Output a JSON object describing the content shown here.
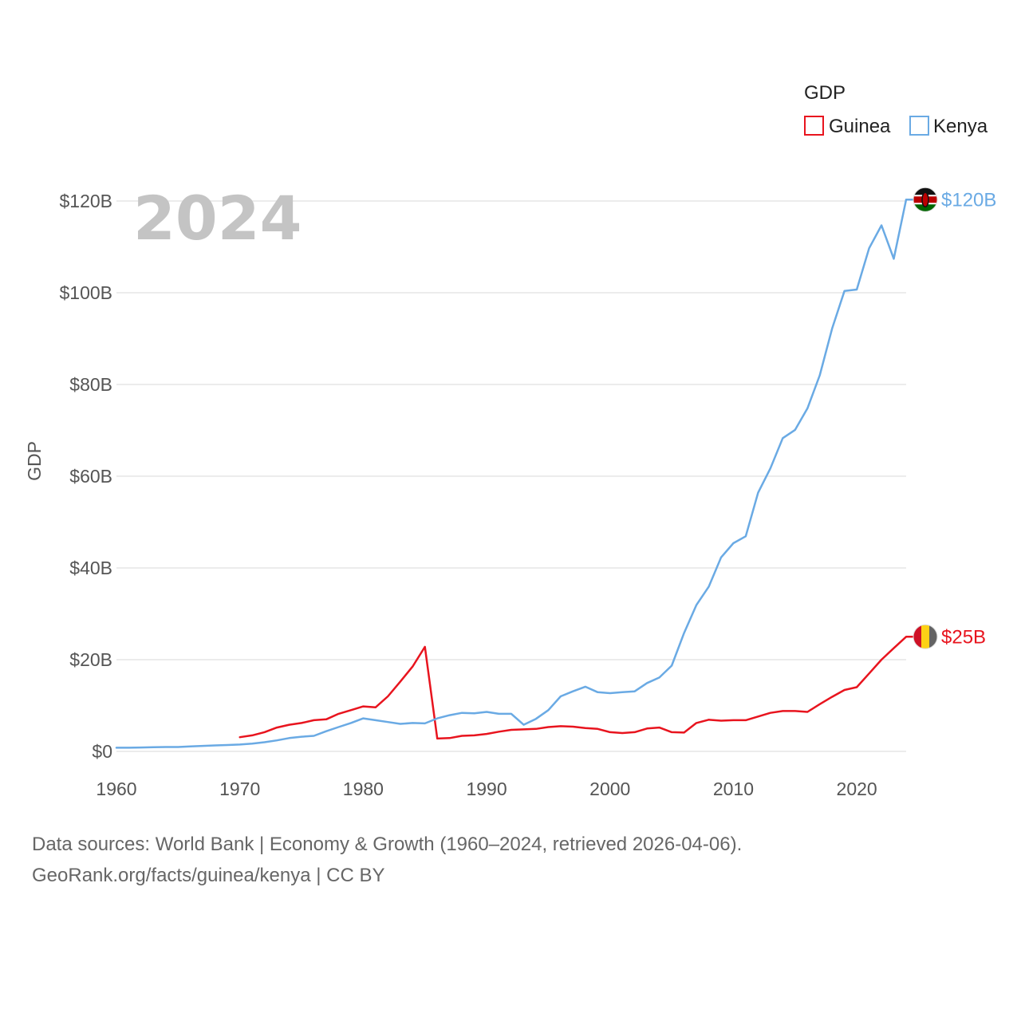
{
  "chart_data": {
    "type": "line",
    "title": "GDP",
    "year_label": "2024",
    "ylabel": "GDP",
    "xlabel": "",
    "xlim": [
      1960,
      2024
    ],
    "ylim": [
      0,
      120
    ],
    "y_unit": "billion USD",
    "x_ticks": [
      1960,
      1970,
      1980,
      1990,
      2000,
      2010,
      2020
    ],
    "y_ticks": [
      0,
      20,
      40,
      60,
      80,
      100,
      120
    ],
    "y_tick_labels": [
      "$0",
      "$20B",
      "$40B",
      "$60B",
      "$80B",
      "$100B",
      "$120B"
    ],
    "grid": true,
    "legend": {
      "title": "GDP",
      "position": "top-right",
      "entries": [
        "Guinea",
        "Kenya"
      ]
    },
    "series": [
      {
        "name": "Guinea",
        "color": "#e8141e",
        "end_label": "$25B",
        "flag_colors": [
          "#ce1126",
          "#fcd116",
          "#636363"
        ],
        "x": [
          1970,
          1971,
          1972,
          1973,
          1974,
          1975,
          1976,
          1977,
          1978,
          1979,
          1980,
          1981,
          1982,
          1983,
          1984,
          1985,
          1986,
          1987,
          1988,
          1989,
          1990,
          1991,
          1992,
          1993,
          1994,
          1995,
          1996,
          1997,
          1998,
          1999,
          2000,
          2001,
          2002,
          2003,
          2004,
          2005,
          2006,
          2007,
          2008,
          2009,
          2010,
          2011,
          2012,
          2013,
          2014,
          2015,
          2016,
          2017,
          2018,
          2019,
          2020,
          2021,
          2022,
          2023,
          2024
        ],
        "values": [
          3.1,
          3.5,
          4.2,
          5.2,
          5.8,
          6.2,
          6.8,
          7.0,
          8.2,
          9.0,
          9.8,
          9.6,
          12.0,
          15.2,
          18.5,
          22.8,
          2.8,
          2.9,
          3.4,
          3.5,
          3.8,
          4.3,
          4.7,
          4.8,
          4.9,
          5.3,
          5.5,
          5.4,
          5.1,
          4.9,
          4.2,
          4.0,
          4.2,
          5.0,
          5.2,
          4.2,
          4.1,
          6.2,
          6.9,
          6.7,
          6.8,
          6.8,
          7.6,
          8.4,
          8.8,
          8.8,
          8.6,
          10.3,
          11.9,
          13.4,
          14.0,
          17.0,
          20.0,
          22.5,
          25.0
        ]
      },
      {
        "name": "Kenya",
        "color": "#6aaae4",
        "end_label": "$120B",
        "flag_colors": [
          "#111111",
          "#bb0000",
          "#006600"
        ],
        "x": [
          1960,
          1961,
          1962,
          1963,
          1964,
          1965,
          1966,
          1967,
          1968,
          1969,
          1970,
          1971,
          1972,
          1973,
          1974,
          1975,
          1976,
          1977,
          1978,
          1979,
          1980,
          1981,
          1982,
          1983,
          1984,
          1985,
          1986,
          1987,
          1988,
          1989,
          1990,
          1991,
          1992,
          1993,
          1994,
          1995,
          1996,
          1997,
          1998,
          1999,
          2000,
          2001,
          2002,
          2003,
          2004,
          2005,
          2006,
          2007,
          2008,
          2009,
          2010,
          2011,
          2012,
          2013,
          2014,
          2015,
          2016,
          2017,
          2018,
          2019,
          2020,
          2021,
          2022,
          2023,
          2024
        ],
        "values": [
          0.8,
          0.8,
          0.85,
          0.9,
          0.95,
          0.95,
          1.1,
          1.2,
          1.3,
          1.4,
          1.5,
          1.7,
          2.0,
          2.4,
          2.9,
          3.2,
          3.4,
          4.4,
          5.3,
          6.2,
          7.2,
          6.8,
          6.4,
          6.0,
          6.2,
          6.1,
          7.2,
          7.9,
          8.4,
          8.3,
          8.6,
          8.2,
          8.2,
          5.8,
          7.1,
          9.0,
          12.0,
          13.1,
          14.1,
          12.9,
          12.7,
          12.9,
          13.1,
          14.9,
          16.1,
          18.7,
          25.8,
          31.9,
          35.9,
          42.3,
          45.4,
          46.9,
          56.4,
          61.7,
          68.3,
          70.1,
          74.8,
          82.0,
          92.2,
          100.4,
          100.7,
          109.7,
          114.7,
          107.4,
          120.3
        ]
      }
    ]
  },
  "footer": {
    "line1": "Data sources: World Bank | Economy & Growth (1960–2024, retrieved 2026-04-06).",
    "line2": "GeoRank.org/facts/guinea/kenya | CC BY"
  }
}
